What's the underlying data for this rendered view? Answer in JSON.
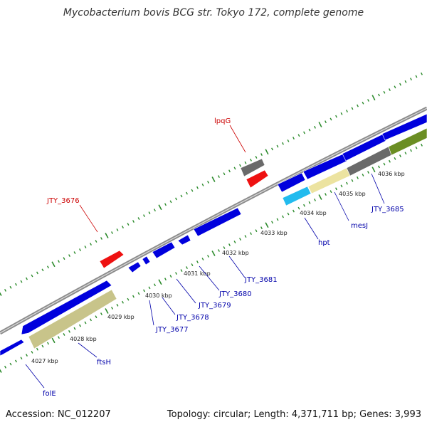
{
  "title": "Mycobacterium bovis BCG str. Tokyo 172, complete genome",
  "footer": {
    "accession": "Accession: NC_012207",
    "stats": "Topology: circular; Length: 4,371,711 bp; Genes: 3,993"
  },
  "colors": {
    "backbone": "#8c8c8c",
    "tick": "#2a8a2a",
    "cds": "#0000dd",
    "rna": "#ee1111",
    "pseudo": "#6a6a6a",
    "khaki": "#c8c48a",
    "pale_yellow": "#ece3a0",
    "cyan": "#22bbee",
    "olive": "#6b8e23",
    "label_blue": "#0000aa",
    "label_red": "#cc0000"
  },
  "ticks": [
    "4027 kbp",
    "4028 kbp",
    "4029 kbp",
    "4030 kbp",
    "4031 kbp",
    "4032 kbp",
    "4033 kbp",
    "4034 kbp",
    "4035 kbp",
    "4036 kbp"
  ],
  "labels": {
    "folE": "folE",
    "ftsH": "ftsH",
    "JTY_3677": "JTY_3677",
    "JTY_3678": "JTY_3678",
    "JTY_3679": "JTY_3679",
    "JTY_3680": "JTY_3680",
    "JTY_3681": "JTY_3681",
    "hpt": "hpt",
    "mesJ": "mesJ",
    "JTY_3685": "JTY_3685",
    "JTY_3676": "JTY_3676",
    "lpqG": "lpqG"
  }
}
